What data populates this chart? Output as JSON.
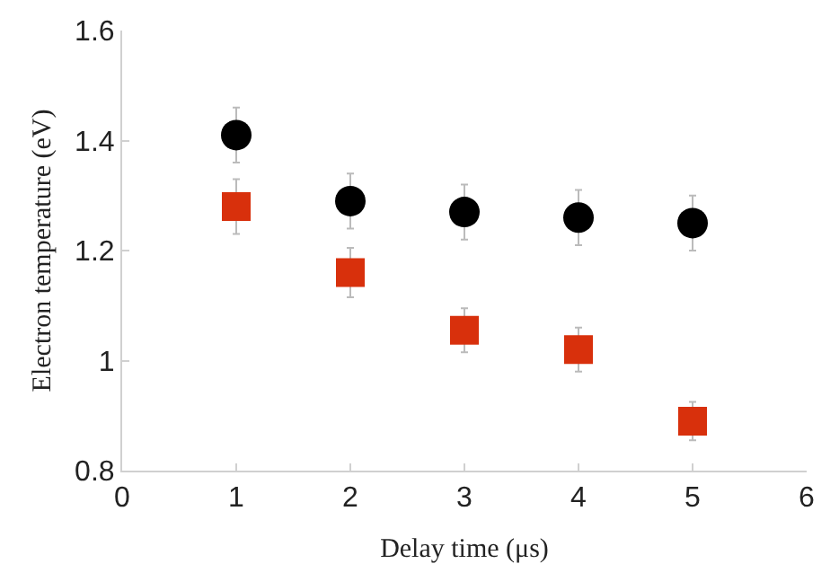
{
  "chart_data": {
    "type": "scatter",
    "xlabel": "Delay time (μs)",
    "ylabel": "Electron temperature (eV)",
    "x": [
      1,
      2,
      3,
      4,
      5
    ],
    "series": [
      {
        "color": "#000000",
        "marker": "circle",
        "values": [
          1.41,
          1.29,
          1.27,
          1.26,
          1.25
        ],
        "errors": [
          0.05,
          0.05,
          0.05,
          0.05,
          0.05
        ]
      },
      {
        "color": "#d8300c",
        "marker": "square",
        "values": [
          1.28,
          1.16,
          1.055,
          1.02,
          0.89
        ],
        "errors": [
          0.05,
          0.045,
          0.04,
          0.04,
          0.035
        ]
      }
    ],
    "xlim": [
      0,
      6
    ],
    "xticks": [
      0,
      1,
      2,
      3,
      4,
      5,
      6
    ],
    "ylim": [
      0.8,
      1.6
    ],
    "yticks": [
      0.8,
      1,
      1.2,
      1.4,
      1.6
    ],
    "grid": false
  }
}
